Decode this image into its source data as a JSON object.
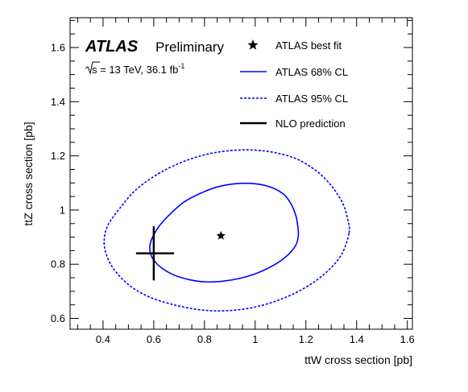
{
  "chart_data": {
    "type": "scatter",
    "experiment": "ATLAS",
    "experiment_status": "Preliminary",
    "energy_prefix": "s",
    "energy_text": " = 13 TeV,  36.1 fb",
    "lumi_exponent": "-1",
    "xlabel": "ttW cross section [pb]",
    "ylabel": "ttZ cross section [pb]",
    "xlim": [
      0.27,
      1.62
    ],
    "ylim": [
      0.56,
      1.71
    ],
    "x_ticks": [
      0.4,
      0.6,
      0.8,
      1,
      1.2,
      1.4,
      1.6
    ],
    "x_tick_labels": [
      "0.4",
      "0.6",
      "0.8",
      "1",
      "1.2",
      "1.4",
      "1.6"
    ],
    "y_ticks": [
      0.6,
      0.8,
      1,
      1.2,
      1.4,
      1.6
    ],
    "y_tick_labels": [
      "0.6",
      "0.8",
      "1",
      "1.2",
      "1.4",
      "1.6"
    ],
    "grid": false,
    "legend_position": "top-right",
    "best_fit": {
      "label": "ATLAS best fit",
      "x": 0.865,
      "y": 0.905,
      "color": "#000000"
    },
    "contour_68": {
      "label": "ATLAS 68% CL",
      "color": "#0000ff",
      "points": [
        [
          1.17,
          0.905
        ],
        [
          1.168,
          0.94
        ],
        [
          1.16,
          0.98
        ],
        [
          1.14,
          1.025
        ],
        [
          1.11,
          1.06
        ],
        [
          1.06,
          1.085
        ],
        [
          1.0,
          1.097
        ],
        [
          0.92,
          1.097
        ],
        [
          0.85,
          1.085
        ],
        [
          0.78,
          1.06
        ],
        [
          0.72,
          1.03
        ],
        [
          0.67,
          0.99
        ],
        [
          0.625,
          0.945
        ],
        [
          0.598,
          0.905
        ],
        [
          0.585,
          0.87
        ],
        [
          0.587,
          0.84
        ],
        [
          0.6,
          0.815
        ],
        [
          0.63,
          0.787
        ],
        [
          0.68,
          0.76
        ],
        [
          0.74,
          0.743
        ],
        [
          0.8,
          0.735
        ],
        [
          0.87,
          0.737
        ],
        [
          0.94,
          0.748
        ],
        [
          1.01,
          0.768
        ],
        [
          1.08,
          0.8
        ],
        [
          1.13,
          0.835
        ],
        [
          1.16,
          0.87
        ],
        [
          1.17,
          0.905
        ]
      ]
    },
    "contour_95": {
      "label": "ATLAS 95% CL",
      "color": "#0000ff",
      "points": [
        [
          1.37,
          0.915
        ],
        [
          1.365,
          0.965
        ],
        [
          1.345,
          1.025
        ],
        [
          1.3,
          1.09
        ],
        [
          1.24,
          1.145
        ],
        [
          1.16,
          1.19
        ],
        [
          1.06,
          1.215
        ],
        [
          0.95,
          1.222
        ],
        [
          0.83,
          1.21
        ],
        [
          0.72,
          1.18
        ],
        [
          0.62,
          1.135
        ],
        [
          0.53,
          1.075
        ],
        [
          0.465,
          1.005
        ],
        [
          0.42,
          0.945
        ],
        [
          0.405,
          0.895
        ],
        [
          0.41,
          0.845
        ],
        [
          0.44,
          0.785
        ],
        [
          0.5,
          0.725
        ],
        [
          0.58,
          0.68
        ],
        [
          0.68,
          0.65
        ],
        [
          0.78,
          0.632
        ],
        [
          0.88,
          0.628
        ],
        [
          0.99,
          0.64
        ],
        [
          1.1,
          0.67
        ],
        [
          1.2,
          0.715
        ],
        [
          1.28,
          0.77
        ],
        [
          1.34,
          0.835
        ],
        [
          1.37,
          0.915
        ]
      ]
    },
    "nlo_prediction": {
      "label": "NLO prediction",
      "x": 0.6,
      "y": 0.84,
      "x_err": [
        0.07,
        0.08
      ],
      "y_err": [
        0.1,
        0.1
      ],
      "color": "#000000"
    }
  }
}
